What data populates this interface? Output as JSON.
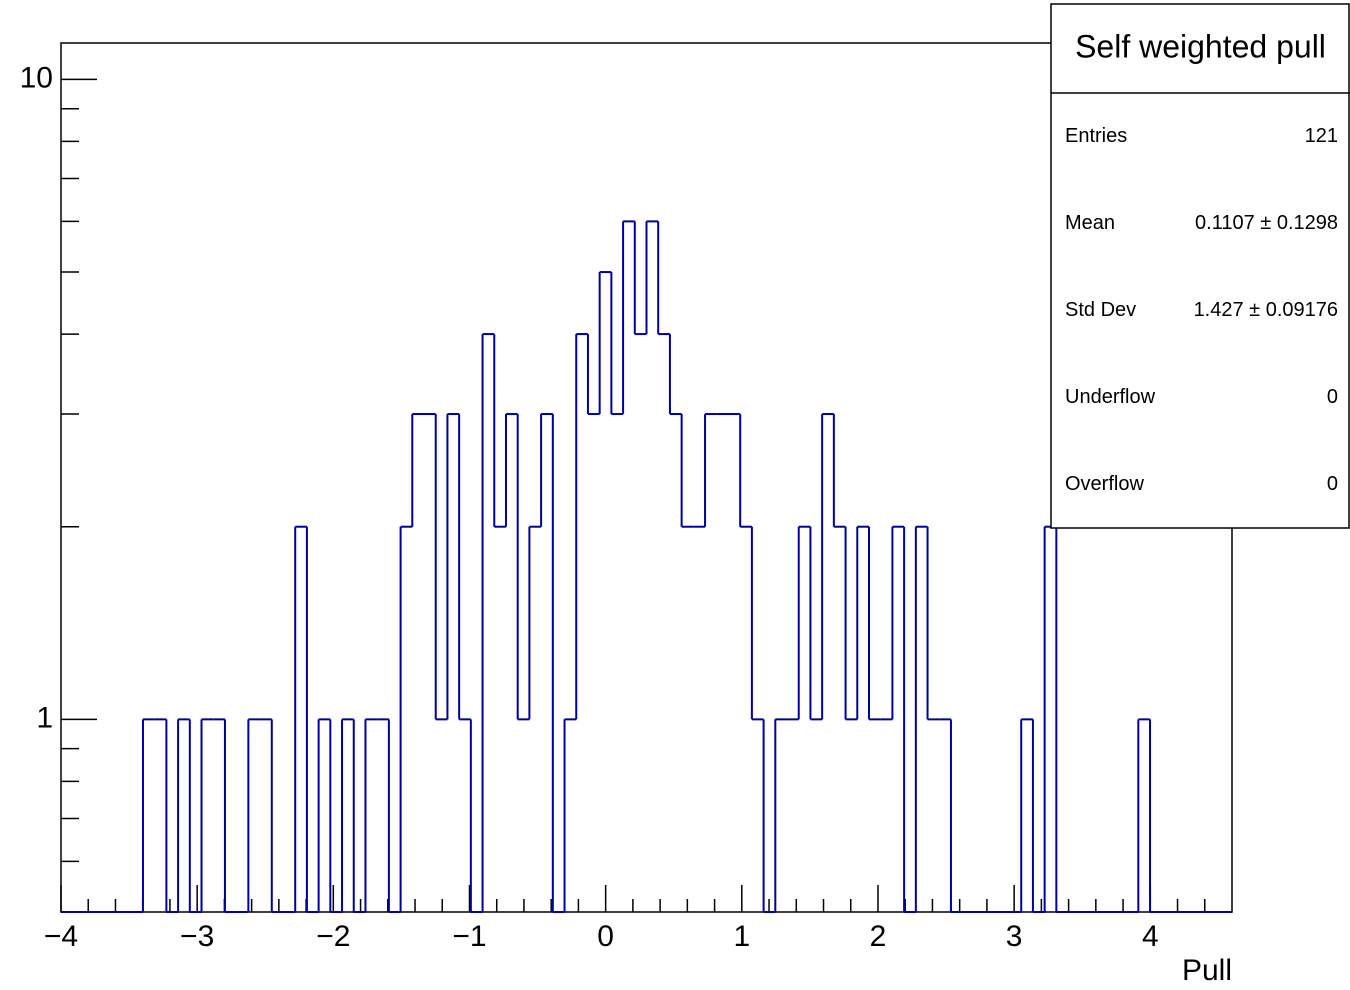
{
  "chart_data": {
    "type": "histogram",
    "x_label": "Pull",
    "color": "#000099",
    "log_y": true,
    "bins": [
      -4.0,
      -3.914,
      -3.828,
      -3.742,
      -3.656,
      -3.57,
      -3.484,
      -3.398,
      -3.312,
      -3.226,
      -3.14,
      -3.054,
      -2.968,
      -2.882,
      -2.796,
      -2.71,
      -2.624,
      -2.538,
      -2.452,
      -2.366,
      -2.28,
      -2.194,
      -2.108,
      -2.022,
      -1.936,
      -1.85,
      -1.764,
      -1.678,
      -1.592,
      -1.506,
      -1.42,
      -1.334,
      -1.248,
      -1.162,
      -1.076,
      -0.99,
      -0.904,
      -0.818,
      -0.732,
      -0.646,
      -0.56,
      -0.474,
      -0.388,
      -0.302,
      -0.216,
      -0.13,
      -0.044,
      0.042,
      0.128,
      0.214,
      0.3,
      0.386,
      0.472,
      0.558,
      0.644,
      0.73,
      0.816,
      0.902,
      0.988,
      1.074,
      1.16,
      1.246,
      1.332,
      1.418,
      1.504,
      1.59,
      1.676,
      1.762,
      1.848,
      1.934,
      2.02,
      2.106,
      2.192,
      2.278,
      2.364,
      2.45,
      2.536,
      2.622,
      2.708,
      2.794,
      2.88,
      2.966,
      3.052,
      3.138,
      3.224,
      3.31,
      3.396,
      3.482,
      3.568,
      3.654,
      3.74,
      3.826,
      3.912,
      3.998,
      4.084,
      4.17,
      4.256,
      4.342,
      4.428,
      4.514,
      4.6
    ],
    "values": [
      0,
      0,
      0,
      0,
      0,
      0,
      0,
      1,
      1,
      0,
      1,
      0,
      1,
      1,
      0,
      0,
      1,
      1,
      0,
      0,
      2,
      0,
      1,
      0,
      1,
      0,
      1,
      1,
      0,
      2,
      3,
      3,
      1,
      3,
      1,
      0,
      4,
      2,
      3,
      1,
      2,
      3,
      0,
      1,
      4,
      3,
      5,
      3,
      6,
      4,
      6,
      4,
      3,
      2,
      2,
      3,
      3,
      3,
      2,
      1,
      0,
      1,
      1,
      2,
      1,
      3,
      2,
      1,
      2,
      1,
      1,
      2,
      0,
      2,
      1,
      1,
      0,
      0,
      0,
      0,
      0,
      0,
      1,
      0,
      2,
      0,
      0,
      0,
      0,
      0,
      0,
      0,
      1,
      0,
      0,
      0,
      0,
      0,
      0,
      0
    ],
    "xlim": [
      -4,
      4.6
    ],
    "ylim": [
      0.5,
      11.4
    ],
    "xticks": [
      {
        "value": -4,
        "label": "−4"
      },
      {
        "value": -3,
        "label": "−3"
      },
      {
        "value": -2,
        "label": "−2"
      },
      {
        "value": -1,
        "label": "−1"
      },
      0,
      1,
      2,
      3,
      4
    ],
    "yticks": [
      1,
      10
    ],
    "stats": {
      "title": "Self weighted pull",
      "rows": [
        [
          "Entries",
          "121"
        ],
        [
          "Mean",
          "0.1107 ± 0.1298"
        ],
        [
          "Std Dev",
          "1.427 ± 0.09176"
        ],
        [
          "Underflow",
          "0"
        ],
        [
          "Overflow",
          "0"
        ]
      ]
    }
  }
}
